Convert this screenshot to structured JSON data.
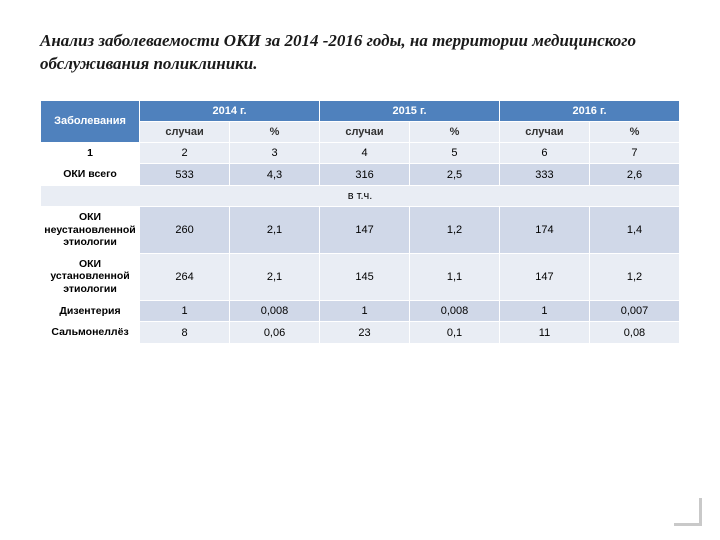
{
  "title": "Анализ заболеваемости ОКИ за  2014 -2016 годы, на территории медицинского обслуживания поликлиники.",
  "table": {
    "type": "table",
    "header_bg": "#4f81bd",
    "header_fg": "#ffffff",
    "band_light": "#e9edf4",
    "band_dark": "#d0d8e8",
    "border_color": "#ffffff",
    "font_family": "Arial",
    "font_size_pt": 9,
    "col_widths_pct": [
      15.5,
      14.08,
      14.08,
      14.08,
      14.08,
      14.08,
      14.08
    ],
    "corner_label": "Заболевания",
    "year_headers": [
      "2014 г.",
      "2015 г.",
      "2016 г."
    ],
    "sub_headers": [
      "случаи",
      "%",
      "случаи",
      "%",
      "случаи",
      "%"
    ],
    "index_row": {
      "label": "1",
      "cells": [
        "2",
        "3",
        "4",
        "5",
        "6",
        "7"
      ]
    },
    "rows": [
      {
        "label": "ОКИ всего",
        "cells": [
          "533",
          "4,3",
          "316",
          "2,5",
          "333",
          "2,6"
        ],
        "band": "dark"
      }
    ],
    "section_label": "в т.ч.",
    "section_rows": [
      {
        "label": "ОКИ неустановленной этиологии",
        "cells": [
          "260",
          "2,1",
          "147",
          "1,2",
          "174",
          "1,4"
        ],
        "band": "dark"
      },
      {
        "label": "ОКИ установленной этиологии",
        "cells": [
          "264",
          "2,1",
          "145",
          "1,1",
          "147",
          "1,2"
        ],
        "band": "light"
      },
      {
        "label": "Дизентерия",
        "cells": [
          "1",
          "0,008",
          "1",
          "0,008",
          "1",
          "0,007"
        ],
        "band": "dark"
      },
      {
        "label": "Сальмонеллёз",
        "cells": [
          "8",
          "0,06",
          "23",
          "0,1",
          "11",
          "0,08"
        ],
        "band": "light"
      }
    ]
  }
}
